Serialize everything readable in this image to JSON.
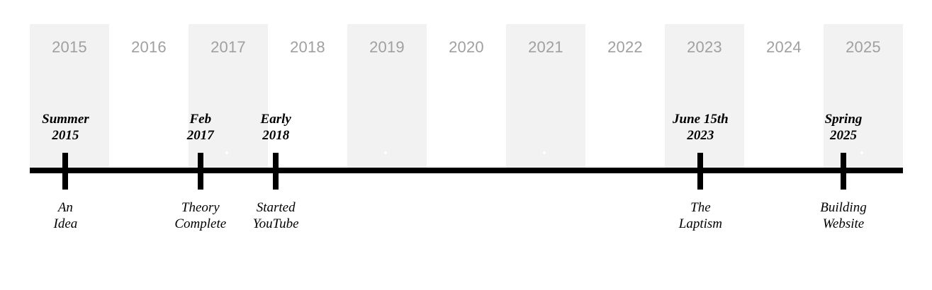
{
  "years": [
    {
      "label": "2015",
      "shaded": true
    },
    {
      "label": "2016",
      "shaded": false
    },
    {
      "label": "2017",
      "shaded": true
    },
    {
      "label": "2018",
      "shaded": false
    },
    {
      "label": "2019",
      "shaded": true
    },
    {
      "label": "2020",
      "shaded": false
    },
    {
      "label": "2021",
      "shaded": true
    },
    {
      "label": "2022",
      "shaded": false
    },
    {
      "label": "2023",
      "shaded": true
    },
    {
      "label": "2024",
      "shaded": false
    },
    {
      "label": "2025",
      "shaded": true
    }
  ],
  "events": [
    {
      "date": [
        "Summer",
        "2015"
      ],
      "label": [
        "An",
        "Idea"
      ],
      "year": 2015.45
    },
    {
      "date": [
        "Feb",
        "2017"
      ],
      "label": [
        "Theory",
        "Complete"
      ],
      "year": 2017.15
    },
    {
      "date": [
        "Early",
        "2018"
      ],
      "label": [
        "Started",
        "YouTube"
      ],
      "year": 2018.1
    },
    {
      "date": [
        "June 15th",
        "2023"
      ],
      "label": [
        "The",
        "Laptism"
      ],
      "year": 2023.45
    },
    {
      "date": [
        "Spring",
        "2025"
      ],
      "label": [
        "Building",
        "Website"
      ],
      "year": 2025.25
    }
  ],
  "colors": {
    "shaded_band": "#f2f2f2",
    "year_text": "#a0a0a0",
    "axis": "#000000"
  }
}
